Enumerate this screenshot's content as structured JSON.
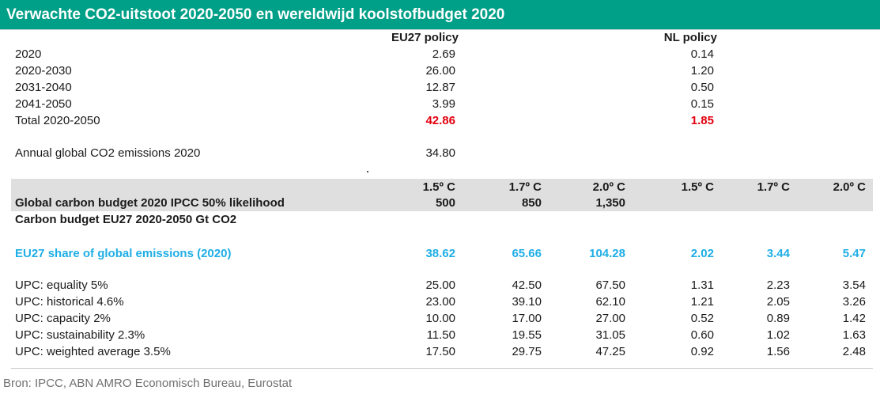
{
  "title": "Verwachte CO2-uitstoot 2020-2050 en wereldwijd koolstofbudget 2020",
  "top": {
    "headers": [
      "EU27 policy",
      "NL policy"
    ],
    "rows": [
      {
        "label": "2020",
        "eu": "2.69",
        "nl": "0.14"
      },
      {
        "label": "2020-2030",
        "eu": "26.00",
        "nl": "1.20"
      },
      {
        "label": "2031-2040",
        "eu": "12.87",
        "nl": "0.50"
      },
      {
        "label": "2041-2050",
        "eu": "3.99",
        "nl": "0.15"
      },
      {
        "label": "Total 2020-2050",
        "eu": "42.86",
        "nl": "1.85"
      }
    ],
    "annual": {
      "label": "Annual global CO2 emissions 2020",
      "value": "34.80"
    }
  },
  "bottom": {
    "temps": [
      "1.5º C",
      "1.7º C",
      "2.0º C",
      "1.5º C",
      "1.7º C",
      "2.0º C"
    ],
    "budget_label": "Global carbon budget 2020 IPCC 50% likelihood",
    "budget_values": [
      "500",
      "850",
      "1,350"
    ],
    "budget_eu_label": "Carbon budget EU27 2020-2050 Gt CO2",
    "share": {
      "label": "EU27 share of global emissions (2020)",
      "values": [
        "38.62",
        "65.66",
        "104.28",
        "2.02",
        "3.44",
        "5.47"
      ]
    },
    "upc_rows": [
      {
        "label": "UPC: equality 5%",
        "values": [
          "25.00",
          "42.50",
          "67.50",
          "1.31",
          "2.23",
          "3.54"
        ]
      },
      {
        "label": "UPC: historical 4.6%",
        "values": [
          "23.00",
          "39.10",
          "62.10",
          "1.21",
          "2.05",
          "3.26"
        ]
      },
      {
        "label": "UPC: capacity 2%",
        "values": [
          "10.00",
          "17.00",
          "27.00",
          "0.52",
          "0.89",
          "1.42"
        ]
      },
      {
        "label": "UPC: sustainability 2.3%",
        "values": [
          "11.50",
          "19.55",
          "31.05",
          "0.60",
          "1.02",
          "1.63"
        ]
      },
      {
        "label": "UPC: weighted average 3.5%",
        "values": [
          "17.50",
          "29.75",
          "47.25",
          "0.92",
          "1.56",
          "2.48"
        ]
      }
    ]
  },
  "source": "Bron: IPCC, ABN AMRO Economisch Bureau, Eurostat",
  "colors": {
    "header_bg": "#009f87",
    "total_red": "#e3000f",
    "share_blue": "#1eaee6",
    "band_grey": "#dfdfdf"
  }
}
